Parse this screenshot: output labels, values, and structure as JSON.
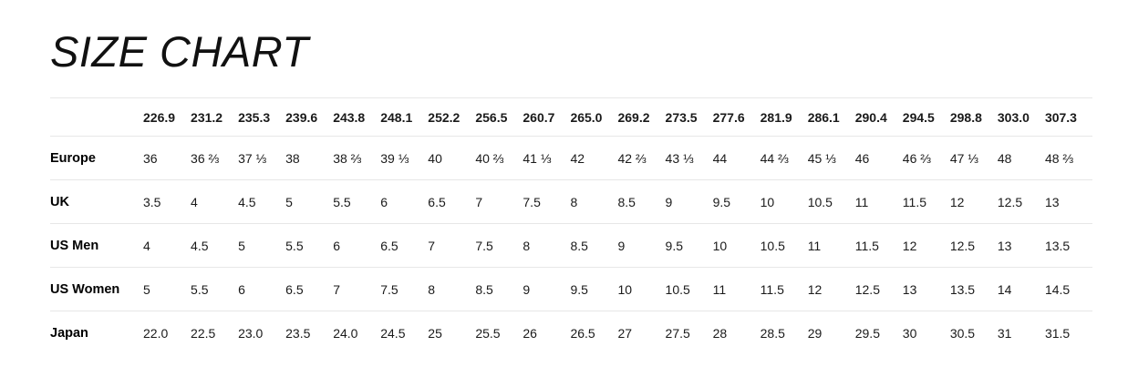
{
  "title": "SIZE CHART",
  "colors": {
    "background": "#ffffff",
    "text": "#1a1a1a",
    "label_text": "#000000",
    "divider": "#e7e7e7"
  },
  "chart_data": {
    "type": "table",
    "title": "SIZE CHART",
    "corner_label": "",
    "columns": [
      "226.9",
      "231.2",
      "235.3",
      "239.6",
      "243.8",
      "248.1",
      "252.2",
      "256.5",
      "260.7",
      "265.0",
      "269.2",
      "273.5",
      "277.6",
      "281.9",
      "286.1",
      "290.4",
      "294.5",
      "298.8",
      "303.0",
      "307.3"
    ],
    "rows": [
      {
        "label": "Europe",
        "values": [
          "36",
          "36 ⅔",
          "37 ⅓",
          "38",
          "38 ⅔",
          "39 ⅓",
          "40",
          "40 ⅔",
          "41 ⅓",
          "42",
          "42 ⅔",
          "43 ⅓",
          "44",
          "44 ⅔",
          "45 ⅓",
          "46",
          "46 ⅔",
          "47 ⅓",
          "48",
          "48 ⅔"
        ]
      },
      {
        "label": "UK",
        "values": [
          "3.5",
          "4",
          "4.5",
          "5",
          "5.5",
          "6",
          "6.5",
          "7",
          "7.5",
          "8",
          "8.5",
          "9",
          "9.5",
          "10",
          "10.5",
          "11",
          "11.5",
          "12",
          "12.5",
          "13"
        ]
      },
      {
        "label": "US Men",
        "values": [
          "4",
          "4.5",
          "5",
          "5.5",
          "6",
          "6.5",
          "7",
          "7.5",
          "8",
          "8.5",
          "9",
          "9.5",
          "10",
          "10.5",
          "11",
          "11.5",
          "12",
          "12.5",
          "13",
          "13.5"
        ]
      },
      {
        "label": "US Women",
        "values": [
          "5",
          "5.5",
          "6",
          "6.5",
          "7",
          "7.5",
          "8",
          "8.5",
          "9",
          "9.5",
          "10",
          "10.5",
          "11",
          "11.5",
          "12",
          "12.5",
          "13",
          "13.5",
          "14",
          "14.5"
        ]
      },
      {
        "label": "Japan",
        "values": [
          "22.0",
          "22.5",
          "23.0",
          "23.5",
          "24.0",
          "24.5",
          "25",
          "25.5",
          "26",
          "26.5",
          "27",
          "27.5",
          "28",
          "28.5",
          "29",
          "29.5",
          "30",
          "30.5",
          "31",
          "31.5"
        ]
      }
    ]
  }
}
